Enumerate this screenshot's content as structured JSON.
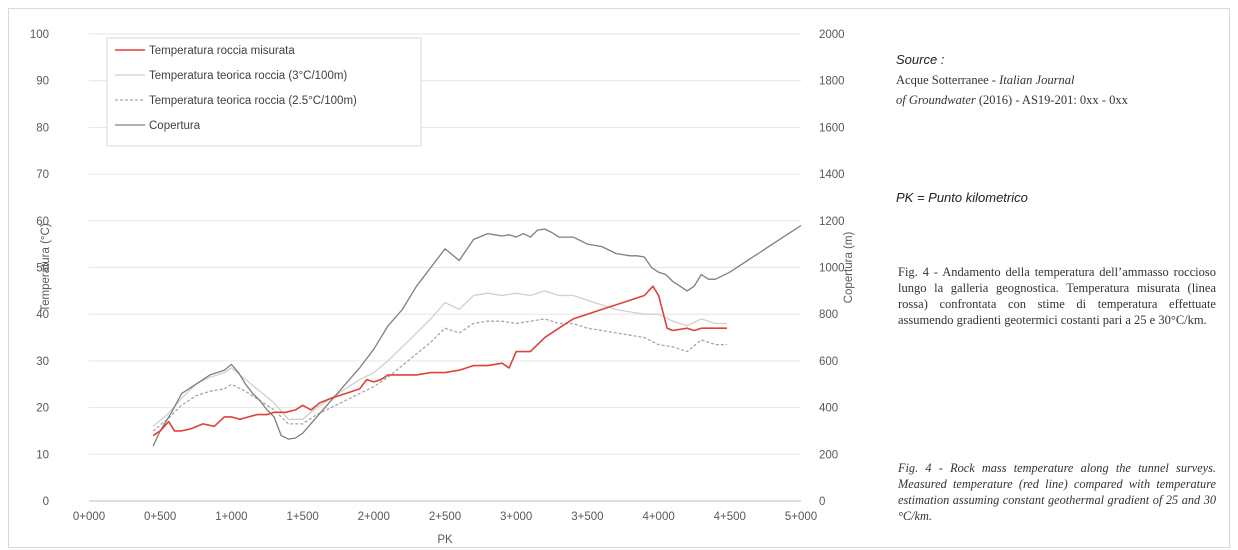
{
  "chart_data": {
    "type": "line",
    "title": "",
    "xlabel": "PK",
    "ylabel": "Temperatura (°C)",
    "y2label": "Copertura (m)",
    "xlim": [
      0,
      5000
    ],
    "ylim": [
      0,
      100
    ],
    "y2lim": [
      0,
      2000
    ],
    "x_tick_values": [
      0,
      500,
      1000,
      1500,
      2000,
      2500,
      3000,
      3500,
      4000,
      4500,
      5000
    ],
    "x_tick_labels": [
      "0+000",
      "0+500",
      "1+000",
      "1+500",
      "2+000",
      "2+500",
      "3+000",
      "3+500",
      "4+000",
      "4+500",
      "5+000"
    ],
    "y_ticks": [
      "0",
      "10",
      "20",
      "30",
      "40",
      "50",
      "60",
      "70",
      "80",
      "90",
      "100"
    ],
    "y2_ticks": [
      "0",
      "200",
      "400",
      "600",
      "800",
      "1000",
      "1200",
      "1400",
      "1600",
      "1800",
      "2000"
    ],
    "grid": true,
    "legend_position": "top-left",
    "series": [
      {
        "name": "Temperatura roccia misurata",
        "axis": "left",
        "color": "#e0403a",
        "dash": "solid",
        "x": [
          450,
          500,
          560,
          600,
          650,
          720,
          800,
          880,
          950,
          1000,
          1060,
          1120,
          1180,
          1250,
          1300,
          1380,
          1450,
          1500,
          1560,
          1620,
          1700,
          1800,
          1900,
          1950,
          2000,
          2050,
          2100,
          2200,
          2300,
          2400,
          2500,
          2600,
          2700,
          2800,
          2900,
          2950,
          3000,
          3100,
          3200,
          3300,
          3400,
          3500,
          3600,
          3700,
          3800,
          3900,
          3960,
          4000,
          4060,
          4100,
          4200,
          4250,
          4300,
          4400,
          4480
        ],
        "y": [
          14,
          15,
          17,
          15,
          15,
          15.5,
          16.5,
          16,
          18,
          18,
          17.5,
          18,
          18.5,
          18.5,
          19,
          19,
          19.5,
          20.5,
          19.5,
          21,
          22,
          23,
          24,
          26,
          25.5,
          26,
          27,
          27,
          27,
          27.5,
          27.5,
          28,
          29,
          29,
          29.5,
          28.5,
          32,
          32,
          35,
          37,
          39,
          40,
          41,
          42,
          43,
          44,
          46,
          44,
          37,
          36.5,
          37,
          36.5,
          37,
          37,
          37
        ]
      },
      {
        "name": "Temperatura teorica roccia (3°C/100m)",
        "axis": "left",
        "color": "#d0d0d0",
        "dash": "solid",
        "x": [
          450,
          550,
          650,
          750,
          850,
          950,
          1000,
          1100,
          1200,
          1300,
          1400,
          1500,
          1600,
          1700,
          1800,
          1900,
          2000,
          2100,
          2200,
          2300,
          2400,
          2500,
          2600,
          2700,
          2800,
          2900,
          3000,
          3100,
          3200,
          3300,
          3400,
          3500,
          3600,
          3700,
          3800,
          3900,
          4000,
          4100,
          4200,
          4300,
          4400,
          4480
        ],
        "y": [
          16,
          18.5,
          22,
          25,
          26.5,
          27.5,
          28.5,
          26,
          23.5,
          21,
          17.5,
          17.5,
          20,
          22,
          24,
          26,
          27.5,
          30,
          33,
          36,
          39,
          42.5,
          41,
          44,
          44.5,
          44,
          44.5,
          44,
          45,
          44,
          44,
          43,
          42,
          41,
          40.5,
          40,
          40,
          38.5,
          37.5,
          39,
          38,
          38
        ]
      },
      {
        "name": "Temperatura teorica roccia (2.5°C/100m)",
        "axis": "left",
        "color": "#a6a6a6",
        "dash": "dotted",
        "x": [
          450,
          550,
          650,
          750,
          850,
          950,
          1000,
          1100,
          1200,
          1300,
          1400,
          1500,
          1600,
          1700,
          1800,
          1900,
          2000,
          2100,
          2200,
          2300,
          2400,
          2500,
          2600,
          2700,
          2800,
          2900,
          3000,
          3100,
          3200,
          3300,
          3400,
          3500,
          3600,
          3700,
          3800,
          3900,
          4000,
          4100,
          4200,
          4300,
          4400,
          4480
        ],
        "y": [
          15,
          17.5,
          20.5,
          22.5,
          23.5,
          24,
          25,
          23.5,
          21.5,
          19.5,
          16.5,
          16.5,
          18.5,
          20,
          21.5,
          23,
          24.5,
          26.5,
          29,
          31.5,
          34,
          37,
          36,
          38,
          38.5,
          38.5,
          38,
          38.5,
          39,
          38,
          38,
          37,
          36.5,
          36,
          35.5,
          35,
          33.5,
          33,
          32,
          34.5,
          33.5,
          33.5
        ]
      },
      {
        "name": "Copertura",
        "axis": "right",
        "color": "#7f7f7f",
        "dash": "solid",
        "x": [
          450,
          500,
          580,
          650,
          750,
          850,
          950,
          1000,
          1050,
          1100,
          1150,
          1200,
          1250,
          1300,
          1350,
          1400,
          1450,
          1500,
          1600,
          1700,
          1800,
          1900,
          2000,
          2100,
          2200,
          2300,
          2400,
          2500,
          2600,
          2700,
          2800,
          2850,
          2900,
          2950,
          3000,
          3050,
          3100,
          3150,
          3200,
          3250,
          3300,
          3350,
          3400,
          3500,
          3600,
          3700,
          3800,
          3850,
          3900,
          3950,
          4000,
          4050,
          4100,
          4150,
          4200,
          4250,
          4300,
          4350,
          4400,
          4500,
          4600,
          4700,
          4800,
          4900,
          5000
        ],
        "y": [
          235,
          300,
          380,
          460,
          500,
          540,
          560,
          585,
          550,
          500,
          460,
          430,
          390,
          360,
          280,
          265,
          270,
          290,
          360,
          430,
          500,
          570,
          650,
          750,
          820,
          920,
          1000,
          1080,
          1030,
          1120,
          1145,
          1140,
          1135,
          1140,
          1130,
          1145,
          1130,
          1160,
          1165,
          1150,
          1130,
          1130,
          1130,
          1100,
          1090,
          1060,
          1050,
          1050,
          1045,
          1000,
          980,
          970,
          940,
          920,
          900,
          920,
          970,
          950,
          950,
          980,
          1020,
          1060,
          1100,
          1140,
          1180
        ]
      }
    ]
  },
  "side": {
    "source_label": "Source :",
    "ref_line1": "Acque Sotterranee - ",
    "ref_journal1": "Italian Journal",
    "ref_journal2": "of Groundwater",
    "ref_line2": " (2016) - AS19-201: 0xx - 0xx",
    "pk_note": "PK = Punto kilometrico",
    "caption_it": "Fig. 4 - Andamento della temperatura dell’ammasso roccioso lungo la galleria geognostica. Temperatura misurata (linea rossa) confrontata con stime di temperatura effettuate assumendo gradienti geotermici costanti pari a 25 e 30°C/km.",
    "caption_en": "Fig. 4 - Rock mass temperature along the tunnel surveys. Measured temperature (red line) compared with temperature estimation assuming constant geothermal gradient of 25 and 30 °C/km."
  }
}
